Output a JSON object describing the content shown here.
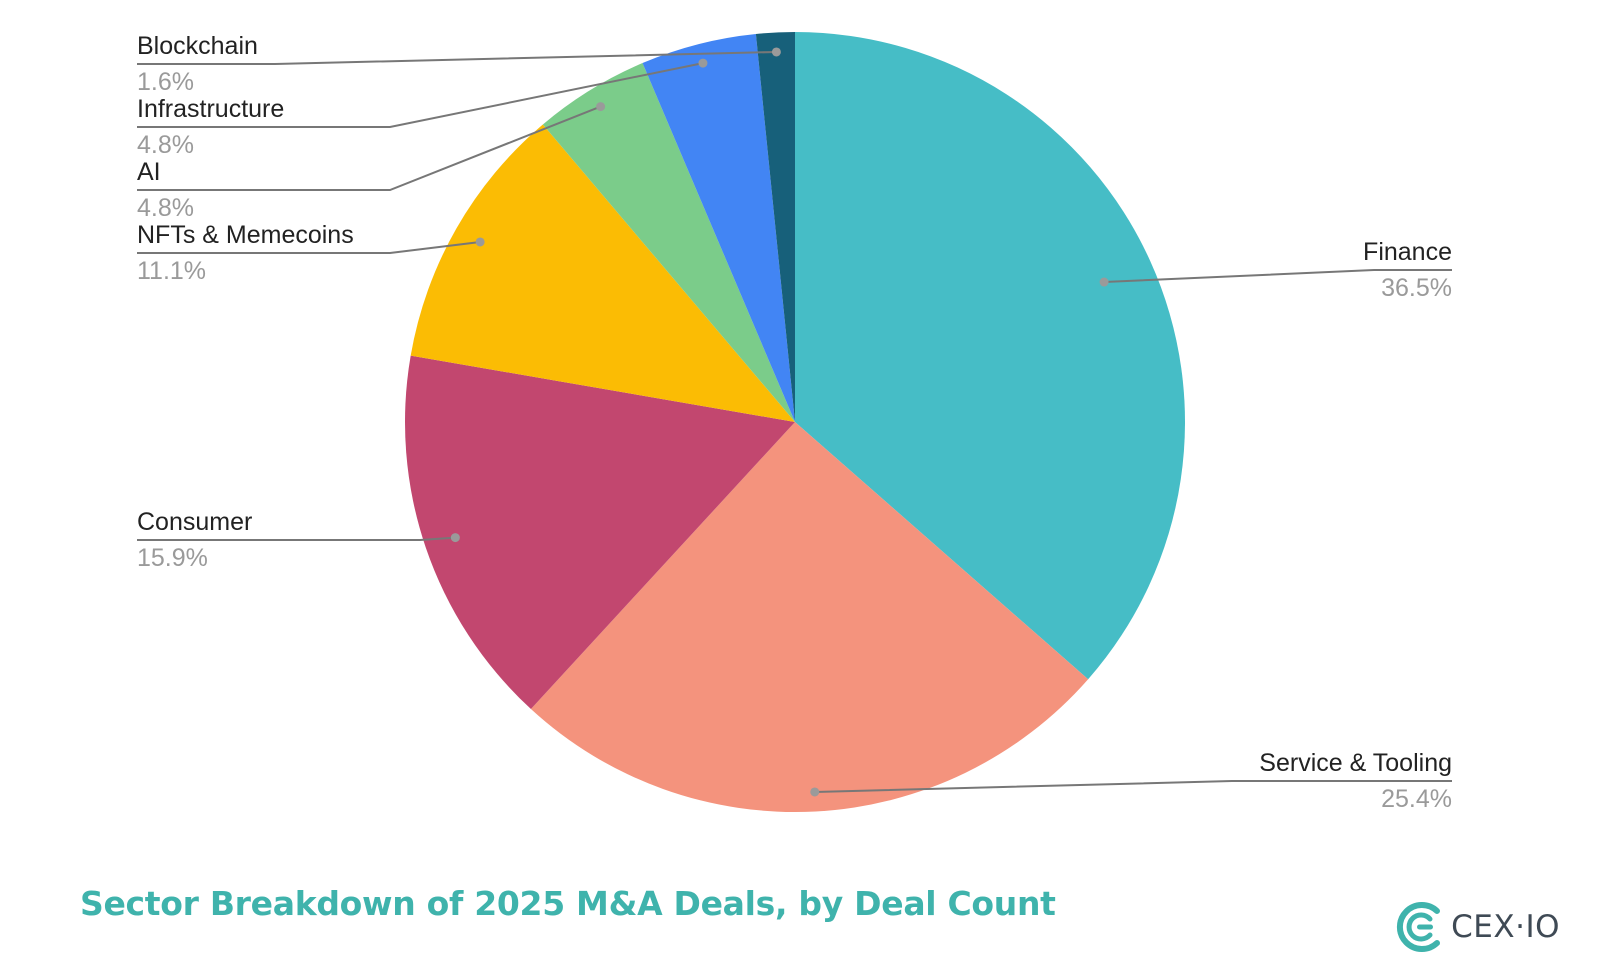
{
  "chart_data": {
    "type": "pie",
    "title": "Sector Breakdown of 2025 M&A Deals, by Deal Count",
    "slices": [
      {
        "label": "Finance",
        "value": 36.5,
        "value_label": "36.5%",
        "color": "#46bdc6"
      },
      {
        "label": "Service & Tooling",
        "value": 25.4,
        "value_label": "25.4%",
        "color": "#f4937d"
      },
      {
        "label": "Consumer",
        "value": 15.9,
        "value_label": "15.9%",
        "color": "#c2476f"
      },
      {
        "label": "NFTs & Memecoins",
        "value": 11.1,
        "value_label": "11.1%",
        "color": "#fbbc04"
      },
      {
        "label": "AI",
        "value": 4.8,
        "value_label": "4.8%",
        "color": "#7bcc8a"
      },
      {
        "label": "Infrastructure",
        "value": 4.8,
        "value_label": "4.8%",
        "color": "#4285f4"
      },
      {
        "label": "Blockchain",
        "value": 1.6,
        "value_label": "1.6%",
        "color": "#17607a"
      }
    ],
    "start_angle": "12 o'clock",
    "direction": "clockwise",
    "legend": "none (leader-line labels)"
  },
  "footer": {
    "title": "Sector Breakdown of 2025 M&A Deals, by Deal Count",
    "title_color": "#3fb3ac"
  },
  "brand": {
    "logo_icon": "cex-io-logo-icon",
    "wordmark": "CEX·IO",
    "accent_color": "#3fb3ac"
  }
}
